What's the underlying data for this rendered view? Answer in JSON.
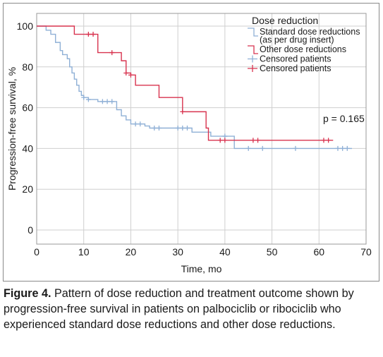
{
  "chart_data": {
    "type": "line",
    "subtype": "kaplan-meier step",
    "xlabel": "Time, mo",
    "ylabel": "Progression-free survival, %",
    "xlim": [
      0,
      70
    ],
    "ylim": [
      0,
      100
    ],
    "xticks": [
      "0",
      "10",
      "20",
      "30",
      "40",
      "50",
      "60",
      "70"
    ],
    "yticks": [
      "0",
      "20",
      "40",
      "60",
      "80",
      "100"
    ],
    "grid": true,
    "legend_placement": "top-right",
    "legend": {
      "title": "Dose reduction",
      "entries": [
        {
          "label_lines": [
            "Standard dose reductions",
            "(as per drug insert)"
          ],
          "color": "#8fb0d6",
          "marker": "step"
        },
        {
          "label_lines": [
            "Other dose reductions"
          ],
          "color": "#d8334f",
          "marker": "step"
        },
        {
          "label_lines": [
            "Censored patients"
          ],
          "color": "#8fb0d6",
          "marker": "plus"
        },
        {
          "label_lines": [
            "Censored patients"
          ],
          "color": "#d8334f",
          "marker": "plus"
        }
      ]
    },
    "annotation": "p = 0.165",
    "series": [
      {
        "id": "standard",
        "color": "#8fb0d6",
        "steps": [
          [
            0,
            100
          ],
          [
            2,
            98
          ],
          [
            3,
            96
          ],
          [
            4,
            92
          ],
          [
            5,
            88
          ],
          [
            5.5,
            86
          ],
          [
            6.5,
            84
          ],
          [
            7,
            80
          ],
          [
            7.5,
            77
          ],
          [
            8,
            74
          ],
          [
            8.5,
            71
          ],
          [
            9,
            68
          ],
          [
            9.5,
            66
          ],
          [
            10,
            65
          ],
          [
            11,
            64
          ],
          [
            13,
            63
          ],
          [
            17,
            59
          ],
          [
            18,
            56
          ],
          [
            19,
            54
          ],
          [
            20,
            52
          ],
          [
            23,
            51
          ],
          [
            24,
            50
          ],
          [
            33,
            48
          ],
          [
            37,
            46
          ],
          [
            42,
            40
          ],
          [
            67,
            40
          ]
        ],
        "censored_x": [
          10,
          11,
          14,
          15,
          16,
          21,
          22,
          25,
          26,
          30,
          31,
          32,
          40,
          45,
          48,
          55,
          64,
          65,
          66
        ]
      },
      {
        "id": "other",
        "color": "#d8334f",
        "steps": [
          [
            0,
            100
          ],
          [
            8,
            96
          ],
          [
            13,
            87
          ],
          [
            18,
            83
          ],
          [
            19,
            77
          ],
          [
            20,
            76
          ],
          [
            21,
            71
          ],
          [
            26,
            65
          ],
          [
            31,
            58
          ],
          [
            36,
            50
          ],
          [
            36.5,
            44
          ],
          [
            63,
            44
          ]
        ],
        "censored_x": [
          11,
          12,
          16,
          19,
          20,
          31,
          39,
          40,
          46,
          47,
          61,
          62
        ]
      }
    ]
  },
  "caption": {
    "label": "Figure 4.",
    "text": " Pattern of dose reduction and treatment outcome shown by progression-free survival in patients on palbociclib or ribociclib who experienced standard dose reductions and other dose reductions."
  }
}
